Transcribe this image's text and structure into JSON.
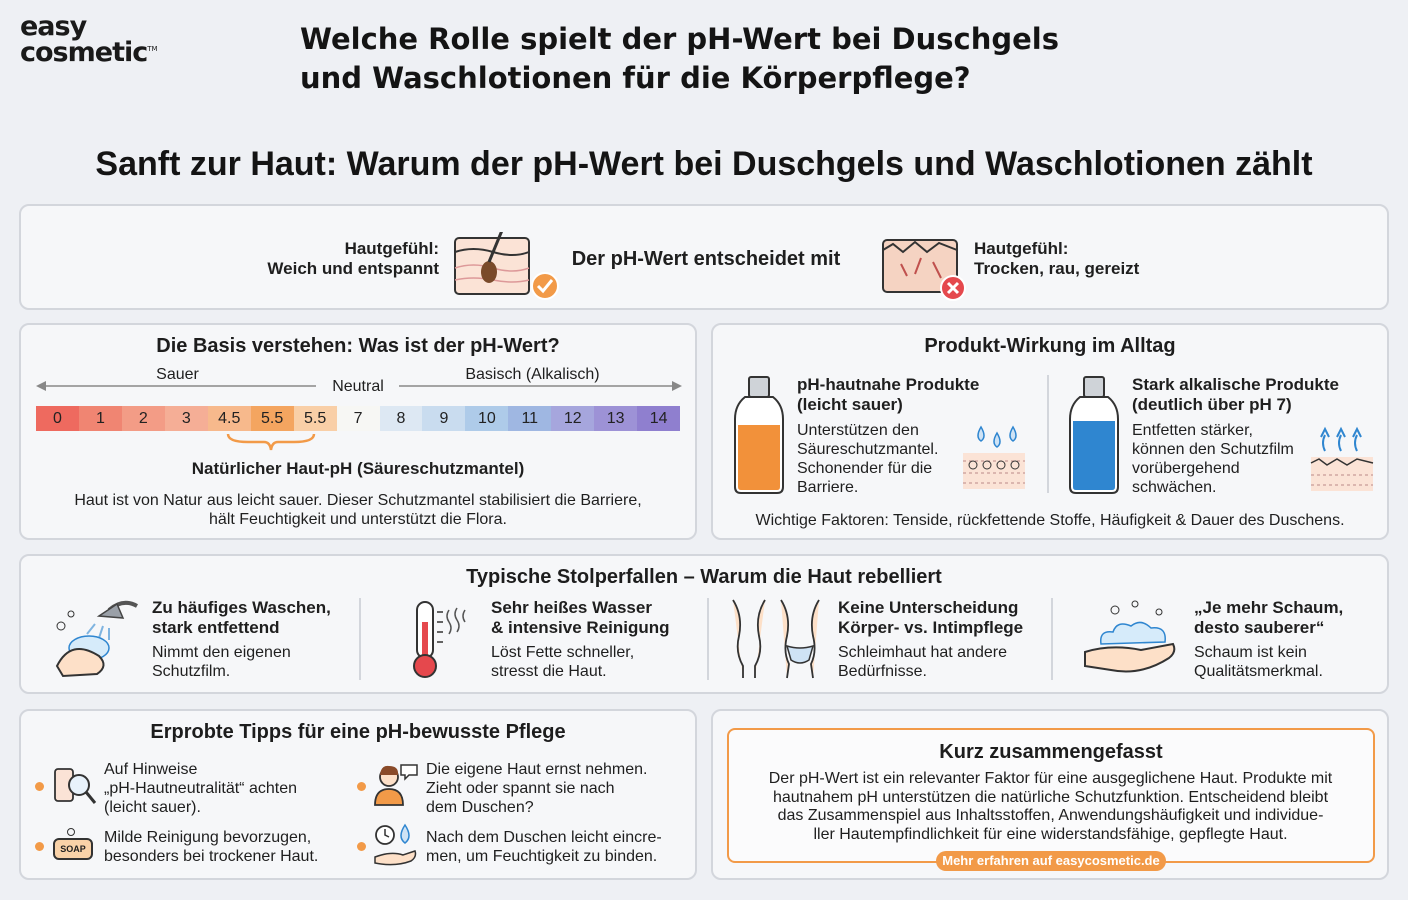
{
  "logo": {
    "line1": "easy",
    "line2": "cosmetic",
    "tm": "TM"
  },
  "question_title": "Welche Rolle spielt der pH-Wert bei Duschgels und Waschlotionen für die Körperpflege?",
  "headline": "Sanft zur Haut: Warum der pH-Wert bei Duschgels und Waschlotionen zählt",
  "banner": {
    "left_label": "Hautgefühl:",
    "left_value": "Weich und entspannt",
    "center": "Der pH-Wert entscheidet mit",
    "right_label": "Hautgefühl:",
    "right_value": "Trocken, rau, gereizt"
  },
  "basics": {
    "title": "Die Basis verstehen: Was ist der pH-Wert?",
    "acid": "Sauer",
    "neutral": "Neutral",
    "basic": "Basisch (Alkalisch)",
    "scale": [
      {
        "label": "0",
        "color": "#ee6a5f"
      },
      {
        "label": "1",
        "color": "#f08572"
      },
      {
        "label": "2",
        "color": "#f39c86"
      },
      {
        "label": "3",
        "color": "#f5ae96"
      },
      {
        "label": "4.5",
        "color": "#f7b98c"
      },
      {
        "label": "5.5",
        "color": "#f4a560"
      },
      {
        "label": "5.5",
        "color": "#f9cfa7"
      },
      {
        "label": "7",
        "color": "#f7f7f4"
      },
      {
        "label": "8",
        "color": "#dde8f3"
      },
      {
        "label": "9",
        "color": "#c9dcef"
      },
      {
        "label": "10",
        "color": "#aecbe9"
      },
      {
        "label": "11",
        "color": "#9fb7e2"
      },
      {
        "label": "12",
        "color": "#a6a6dd"
      },
      {
        "label": "13",
        "color": "#9d92d6"
      },
      {
        "label": "14",
        "color": "#8f7fcf"
      }
    ],
    "skin_ph": "Natürlicher Haut-pH (Säureschutzmantel)",
    "desc1": "Haut ist von Natur aus leicht sauer. Dieser Schutzmantel stabilisiert die Barriere,",
    "desc2": "hält Feuchtigkeit und unterstützt die Flora."
  },
  "product": {
    "title": "Produkt-Wirkung im Alltag",
    "left_title1": "pH-hautnahe Produkte",
    "left_title2": "(leicht sauer)",
    "left_text": [
      "Unterstützen den",
      "Säureschutzmantel.",
      "Schonender für die",
      "Barriere."
    ],
    "right_title1": "Stark alkalische Produkte",
    "right_title2": "(deutlich über pH 7)",
    "right_text": [
      "Entfetten stärker,",
      "können den Schutzfilm",
      "vorübergehend",
      "schwächen."
    ],
    "factors": "Wichtige Faktoren: Tenside, rückfettende Stoffe, Häufigkeit & Dauer des Duschens.",
    "bottle_left_color": "#f2913a",
    "bottle_right_color": "#2f86d0"
  },
  "pitfalls": {
    "title": "Typische Stolperfallen – Warum die Haut rebelliert",
    "items": [
      {
        "title1": "Zu häufiges Waschen,",
        "title2": "stark entfettend",
        "text1": "Nimmt den eigenen",
        "text2": "Schutzfilm."
      },
      {
        "title1": "Sehr heißes Wasser",
        "title2": "& intensive Reinigung",
        "text1": "Löst Fette schneller,",
        "text2": "stresst die Haut."
      },
      {
        "title1": "Keine Unterscheidung",
        "title2": "Körper- vs. Intimpflege",
        "text1": "Schleimhaut hat andere",
        "text2": "Bedürfnisse."
      },
      {
        "title1": "„Je mehr Schaum,",
        "title2": "desto sauberer“",
        "text1": "Schaum ist kein",
        "text2": "Qualitätsmerkmal."
      }
    ]
  },
  "tips": {
    "title": "Erprobte Tipps für eine pH-bewusste Pflege",
    "items": [
      {
        "lines": [
          "Auf Hinweise",
          "„pH-Hautneutralität“ achten",
          "(leicht sauer)."
        ]
      },
      {
        "lines": [
          "Die eigene Haut ernst nehmen.",
          "Zieht oder spannt sie nach",
          "dem Duschen?"
        ]
      },
      {
        "lines": [
          "Milde Reinigung bevorzugen,",
          "besonders bei trockener Haut."
        ]
      },
      {
        "lines": [
          "Nach dem Duschen leicht eincre-",
          "men, um Feuchtigkeit zu binden."
        ]
      }
    ],
    "soap_label": "SOAP"
  },
  "summary": {
    "title": "Kurz zusammengefasst",
    "lines": [
      "Der pH-Wert ist ein relevanter Faktor für eine ausgeglichene Haut. Produkte mit",
      "hautnahem pH unterstützen die natürliche Schutzfunktion. Entscheidend bleibt",
      "das Zusammenspiel aus Inhaltsstoffen, Anwendungshäufigkeit und individue-",
      "ller Hautempfindlichkeit für eine widerstandsfähige, gepflegte Haut."
    ],
    "cta": "Mehr erfahren auf easycosmetic.de"
  },
  "colors": {
    "accent": "#f29a48",
    "danger": "#e5484d",
    "border": "#d3d6dc"
  }
}
